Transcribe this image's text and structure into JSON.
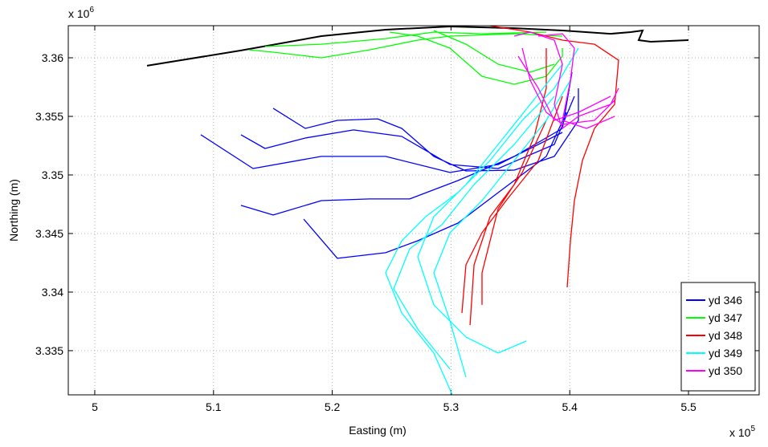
{
  "chart_data": {
    "type": "line",
    "xlabel": "Easting (m)",
    "ylabel": "Northing (m)",
    "x_exponent": {
      "base": "x 10",
      "power": "5"
    },
    "y_exponent": {
      "base": "x 10",
      "power": "6"
    },
    "xlim": [
      497770,
      555950
    ],
    "ylim": [
      3331230,
      3362740
    ],
    "xticks": [
      {
        "value": 500000,
        "label": "5"
      },
      {
        "value": 510000,
        "label": "5.1"
      },
      {
        "value": 520000,
        "label": "5.2"
      },
      {
        "value": 530000,
        "label": "5.3"
      },
      {
        "value": 540000,
        "label": "5.4"
      },
      {
        "value": 550000,
        "label": "5.5"
      }
    ],
    "yticks": [
      {
        "value": 3335000,
        "label": "3.335"
      },
      {
        "value": 3340000,
        "label": "3.34"
      },
      {
        "value": 3345000,
        "label": "3.345"
      },
      {
        "value": 3350000,
        "label": "3.35"
      },
      {
        "value": 3355000,
        "label": "3.355"
      },
      {
        "value": 3360000,
        "label": "3.36"
      }
    ],
    "grid": true,
    "legend": "lower right",
    "coastline": {
      "color": "#000000",
      "x": [
        504400,
        512310,
        519080,
        524490,
        529910,
        535320,
        539380,
        543440,
        545130,
        546140,
        545800,
        546820,
        550000
      ],
      "y": [
        3359320,
        3360620,
        3361850,
        3362400,
        3362670,
        3362530,
        3362330,
        3362050,
        3362190,
        3362330,
        3361510,
        3361370,
        3361510
      ]
    },
    "series": [
      {
        "name": "yd 346",
        "color": "#0000ff",
        "x": [
          515020,
          517730,
          520430,
          523820,
          525850,
          528550,
          531260,
          535320,
          538700,
          540730,
          540730,
          null,
          512310,
          514340,
          517730,
          521790,
          525850,
          529910,
          533970,
          538700,
          540390,
          null,
          508930,
          513330,
          519080,
          524490,
          529910,
          533970,
          539380,
          null,
          512310,
          515020,
          519080,
          523140,
          526520,
          530580,
          535320,
          539380,
          540190,
          null,
          517590,
          520430,
          524490,
          527200,
          530580,
          533970,
          538020,
          539720
        ],
        "y": [
          3355690,
          3353970,
          3354660,
          3354790,
          3353970,
          3351580,
          3350340,
          3350410,
          3351580,
          3354660,
          3357400,
          null,
          3353430,
          3352260,
          3353150,
          3353840,
          3353290,
          3350890,
          3350550,
          3352600,
          3356710,
          null,
          3353430,
          3350550,
          3351580,
          3351580,
          3350210,
          3350890,
          3353630,
          null,
          3347400,
          3346580,
          3347810,
          3347950,
          3347950,
          3349520,
          3351580,
          3353970,
          3358770,
          null,
          3346230,
          3342880,
          3343360,
          3344380,
          3345890,
          3348490,
          3351580,
          3355340
        ]
      },
      {
        "name": "yd 347",
        "color": "#00ff00",
        "x": [
          512990,
          515020,
          519080,
          523140,
          527200,
          529910,
          535320,
          539380,
          null,
          514340,
          519080,
          524490,
          528550,
          532610,
          538020,
          null,
          524830,
          527200,
          529910,
          532610,
          535320,
          538020,
          539380,
          539380,
          null,
          528550,
          531260,
          533970,
          536670,
          538700
        ],
        "y": [
          3360680,
          3360480,
          3360000,
          3360680,
          3361510,
          3361850,
          3362050,
          3361850,
          null,
          3360960,
          3361160,
          3361640,
          3362190,
          3362050,
          3362190,
          null,
          3362190,
          3361850,
          3360820,
          3358420,
          3357740,
          3358420,
          3360140,
          3360820,
          null,
          3362330,
          3361160,
          3359450,
          3358770,
          3359450
        ]
      },
      {
        "name": "yd 348",
        "color": "#ff0000",
        "x": [
          533290,
          536670,
          539380,
          542080,
          544110,
          543780,
          542080,
          541070,
          540390,
          540060,
          539780,
          null,
          538020,
          538020,
          537010,
          535320,
          533290,
          531940,
          531600,
          null,
          539380,
          537350,
          534640,
          532610,
          531260,
          530920,
          null,
          538020,
          536000,
          533970,
          532610,
          532610
        ],
        "y": [
          3362740,
          3362190,
          3361510,
          3361160,
          3359790,
          3356030,
          3353970,
          3351230,
          3347810,
          3344380,
          3340410,
          null,
          3360820,
          3357400,
          3353290,
          3349180,
          3346440,
          3342330,
          3337190,
          null,
          3356710,
          3351230,
          3347810,
          3345070,
          3342330,
          3338220,
          null,
          3354660,
          3350210,
          3347120,
          3341640,
          3338910
        ]
      },
      {
        "name": "yd 349",
        "color": "#00ffff",
        "x": [
          540730,
          538700,
          536000,
          533290,
          530580,
          527870,
          525850,
          524490,
          525850,
          528550,
          530110,
          null,
          539380,
          536670,
          533970,
          531260,
          528550,
          527200,
          528550,
          531260,
          533970,
          536330,
          null,
          540060,
          538020,
          535320,
          532610,
          529910,
          528550,
          529910,
          531260,
          null,
          538700,
          535320,
          531940,
          529230,
          526520,
          525170,
          527200,
          529910
        ],
        "y": [
          3360820,
          3357400,
          3354660,
          3351230,
          3348490,
          3346440,
          3344380,
          3341640,
          3338220,
          3334800,
          3331230,
          null,
          3359450,
          3356030,
          3352600,
          3349180,
          3346440,
          3343010,
          3338910,
          3336170,
          3334800,
          3335820,
          null,
          3358080,
          3354660,
          3351230,
          3347810,
          3345070,
          3341640,
          3337540,
          3332740,
          null,
          3356710,
          3352600,
          3349180,
          3345750,
          3343700,
          3340280,
          3336850,
          3333430
        ]
      },
      {
        "name": "yd 350",
        "color": "#ff00ff",
        "x": [
          535320,
          536670,
          538700,
          539380,
          538700,
          539380,
          540730,
          543440,
          544110,
          null,
          536000,
          536670,
          538020,
          539380,
          542080,
          543780,
          null,
          537350,
          539380,
          540390,
          540060,
          539380,
          541410,
          543780,
          null,
          535660,
          537350,
          538700,
          540730,
          543440
        ],
        "y": [
          3361850,
          3362190,
          3361510,
          3359450,
          3356030,
          3353970,
          3355000,
          3356030,
          3357400,
          null,
          3360820,
          3358080,
          3355340,
          3354320,
          3354660,
          3356370,
          null,
          3361850,
          3362050,
          3360820,
          3358080,
          3354660,
          3353970,
          3355000,
          null,
          3360140,
          3357400,
          3354660,
          3355340,
          3356710
        ]
      }
    ]
  }
}
